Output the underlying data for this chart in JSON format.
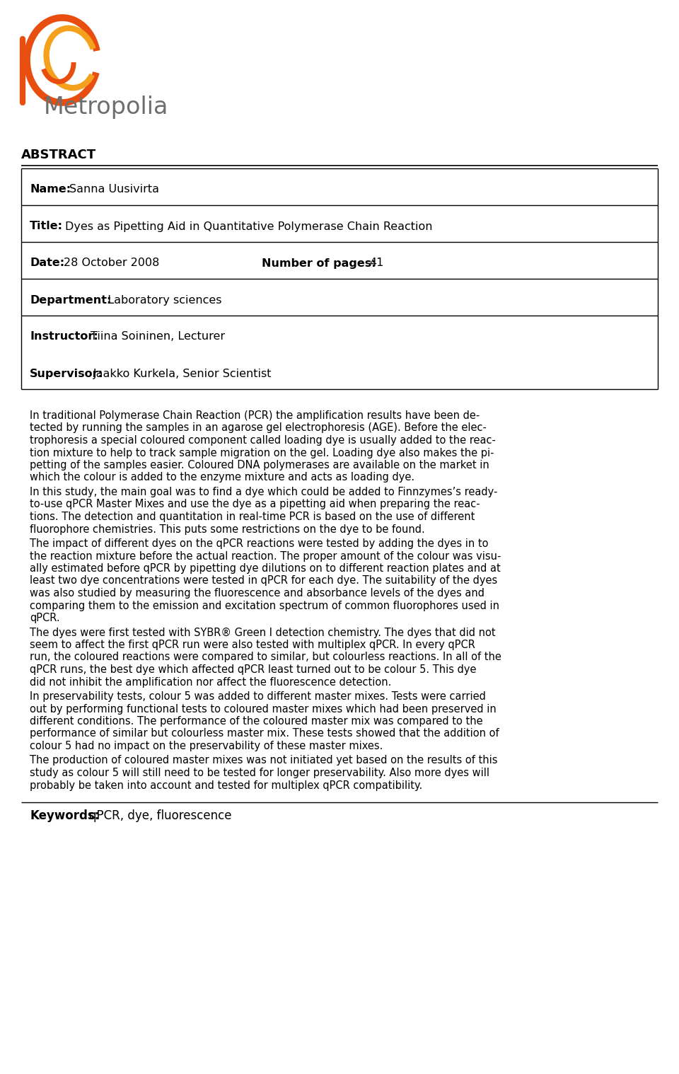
{
  "bg_color": "#ffffff",
  "abstract_title": "ABSTRACT",
  "table_rows": [
    {
      "label": "Name:",
      "value": "Sanna Uusivirta",
      "second_label": null,
      "second_value": null
    },
    {
      "label": "Title:",
      "value": "Dyes as Pipetting Aid in Quantitative Polymerase Chain Reaction",
      "second_label": null,
      "second_value": null
    },
    {
      "label": "Date:",
      "value": "28 October 2008",
      "second_label": "Number of pages:",
      "second_value": "41"
    },
    {
      "label": "Department:",
      "value": "  Laboratory sciences",
      "second_label": null,
      "second_value": null
    },
    {
      "label": "Instructor:",
      "value": "Tiina Soininen, Lecturer",
      "second_label": null,
      "second_value": null,
      "combined_below": "Supervisor: Jaakko Kurkela, Senior Scientist"
    }
  ],
  "supervisor_label": "Supervisor:",
  "supervisor_value": "Jaakko Kurkela, Senior Scientist",
  "body_paragraphs": [
    [
      "In traditional Polymerase Chain Reaction (PCR) the amplification results have been de-",
      "tected by running the samples in an agarose gel electrophoresis (AGE). Before the elec-",
      "trophoresis a special coloured component called loading dye is usually added to the reac-",
      "tion mixture to help to track sample migration on the gel. Loading dye also makes the pi-",
      "petting of the samples easier. Coloured DNA polymerases are available on the market in",
      "which the colour is added to the enzyme mixture and acts as loading dye."
    ],
    [
      "In this study, the main goal was to find a dye which could be added to Finnzymes’s ready-",
      "to-use qPCR Master Mixes and use the dye as a pipetting aid when preparing the reac-",
      "tions. The detection and quantitation in real-time PCR is based on the use of different",
      "fluorophore chemistries. This puts some restrictions on the dye to be found."
    ],
    [
      "The impact of different dyes on the qPCR reactions were tested by adding the dyes in to",
      "the reaction mixture before the actual reaction. The proper amount of the colour was visu-",
      "ally estimated before qPCR by pipetting dye dilutions on to different reaction plates and at",
      "least two dye concentrations were tested in qPCR for each dye. The suitability of the dyes",
      "was also studied by measuring the fluorescence and absorbance levels of the dyes and",
      "comparing them to the emission and excitation spectrum of common fluorophores used in",
      "qPCR."
    ],
    [
      "The dyes were first tested with SYBR® Green I detection chemistry. The dyes that did not",
      "seem to affect the first qPCR run were also tested with multiplex qPCR. In every qPCR",
      "run, the coloured reactions were compared to similar, but colourless reactions. In all of the",
      "qPCR runs, the best dye which affected qPCR least turned out to be colour 5. This dye",
      "did not inhibit the amplification nor affect the fluorescence detection."
    ],
    [
      "In preservability tests, colour 5 was added to different master mixes. Tests were carried",
      "out by performing functional tests to coloured master mixes which had been preserved in",
      "different conditions. The performance of the coloured master mix was compared to the",
      "performance of similar but colourless master mix. These tests showed that the addition of",
      "colour 5 had no impact on the preservability of these master mixes."
    ],
    [
      "The production of coloured master mixes was not initiated yet based on the results of this",
      "study as colour 5 will still need to be tested for longer preservability. Also more dyes will",
      "probably be taken into account and tested for multiplex qPCR compatibility."
    ]
  ],
  "keywords_label": "Keywords:",
  "keywords_value": "qPCR, dye, fluorescence",
  "swirl_color1": "#e84e0f",
  "swirl_color2": "#f4a21d",
  "logo_text_color": "#6d6e70"
}
